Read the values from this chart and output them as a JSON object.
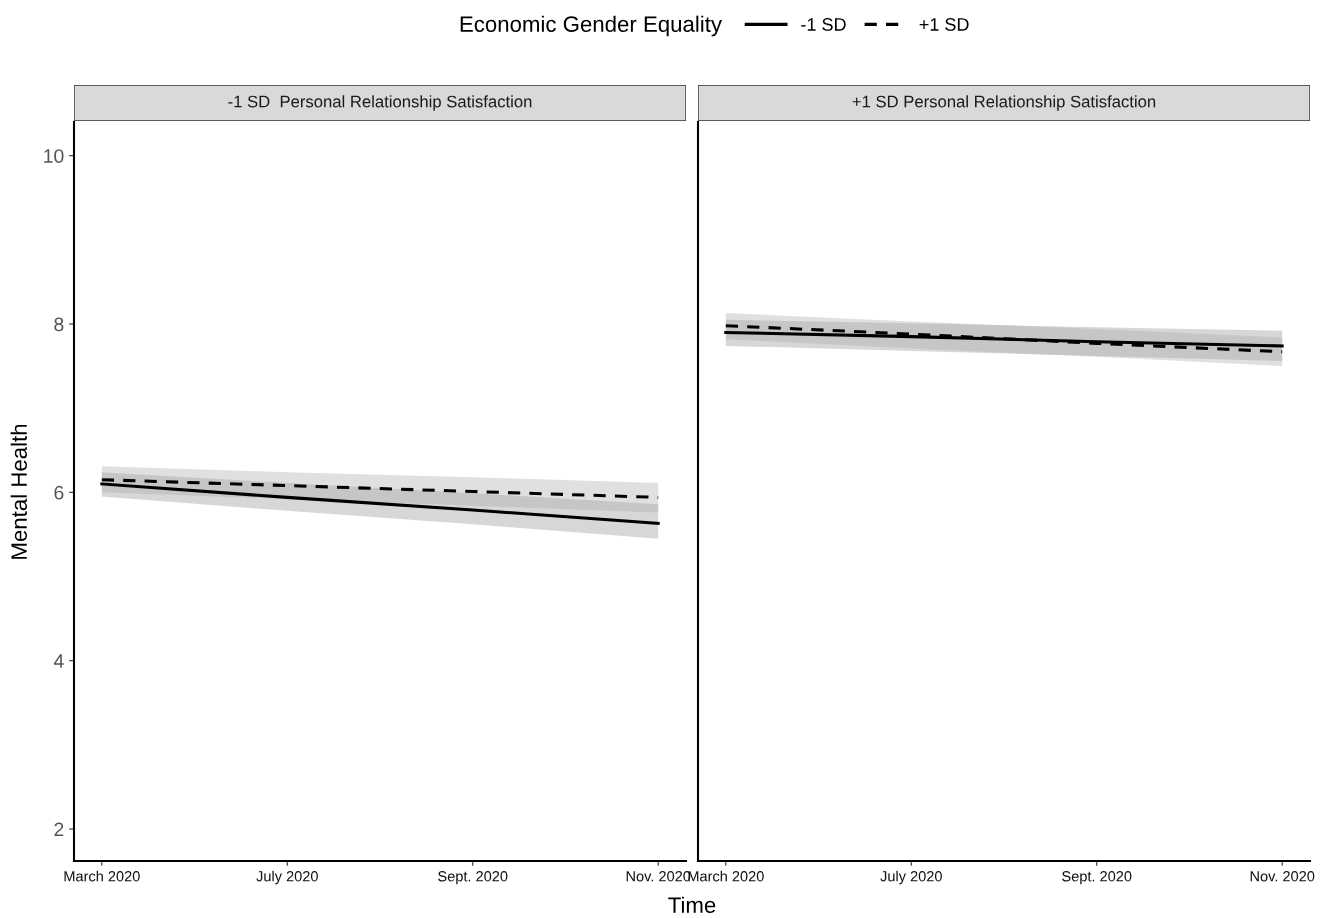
{
  "chart_data": [
    {
      "type": "line",
      "title": "-1 SD  Personal Relationship Satisfaction",
      "xlabel": "Time",
      "ylabel": "Mental Health",
      "legend_title": "Economic Gender Equality",
      "legend": "top",
      "grid": false,
      "categories": [
        "March 2020",
        "July 2020",
        "Sept. 2020",
        "Nov. 2020"
      ],
      "ylim": [
        1.62,
        10.4
      ],
      "yticks": [
        2,
        4,
        6,
        8,
        10
      ],
      "series": [
        {
          "name": "-1 SD",
          "color": "#000000",
          "line_style": "solid",
          "values": [
            6.1,
            5.94,
            5.79,
            5.63
          ],
          "lower": [
            5.95,
            5.78,
            5.62,
            5.45
          ],
          "upper": [
            6.24,
            6.11,
            5.99,
            5.86
          ]
        },
        {
          "name": "+1 SD",
          "color": "#000000",
          "line_style": "dashed",
          "values": [
            6.15,
            6.08,
            6.01,
            5.94
          ],
          "lower": [
            6.0,
            5.92,
            5.84,
            5.76
          ],
          "upper": [
            6.31,
            6.24,
            6.18,
            6.11
          ]
        }
      ]
    },
    {
      "type": "line",
      "title": "+1 SD Personal Relationship Satisfaction",
      "tick_labels": "x",
      "grid": false,
      "categories": [
        "March 2020",
        "July 2020",
        "Sept. 2020",
        "Nov. 2020"
      ],
      "ylim": [
        1.62,
        10.4
      ],
      "yticks": [
        2,
        4,
        6,
        8,
        10
      ],
      "series": [
        {
          "color": "#000000",
          "line_style": "solid",
          "values": [
            7.9,
            7.85,
            7.79,
            7.74
          ],
          "lower": [
            7.74,
            7.68,
            7.62,
            7.56
          ],
          "upper": [
            8.05,
            8.01,
            7.96,
            7.92
          ]
        },
        {
          "color": "#000000",
          "line_style": "dashed",
          "values": [
            7.98,
            7.88,
            7.77,
            7.67
          ],
          "lower": [
            7.82,
            7.71,
            7.61,
            7.5
          ],
          "upper": [
            8.13,
            8.03,
            7.94,
            7.84
          ]
        }
      ]
    }
  ]
}
